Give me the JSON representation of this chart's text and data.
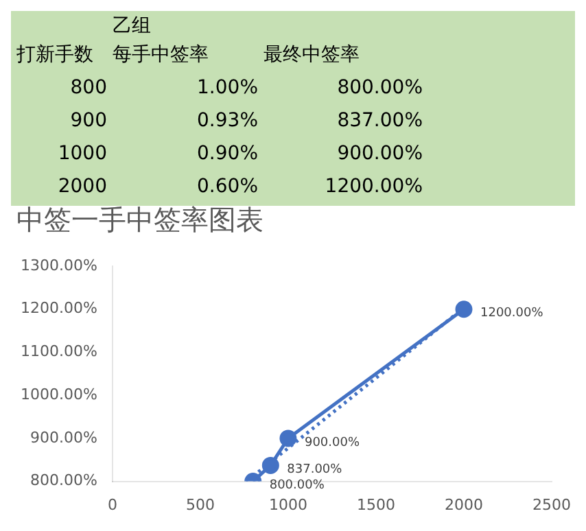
{
  "chart_data": [
    {
      "type": "other",
      "title": "乙组",
      "annotations": [
        "打新手数",
        "每手中签率",
        "最终中签率",
        "800",
        "1.00%",
        "800.00%",
        "900",
        "0.93%",
        "837.00%",
        "1000",
        "0.90%",
        "900.00%",
        "2000",
        "0.60%",
        "1200.00%"
      ]
    },
    {
      "type": "scatter",
      "title": "中签一手中签率图表",
      "x": [
        800,
        900,
        1000,
        2000
      ],
      "series": [
        {
          "type": "line",
          "color": "#4472c4",
          "marker": "circle",
          "line_style": "solid",
          "values": [
            800,
            837,
            900,
            1200
          ],
          "value_labels": [
            "800.00%",
            "837.00%",
            "900.00%",
            "1200.00%"
          ]
        },
        {
          "type": "line",
          "color": "#4472c4",
          "marker": "none",
          "line_style": "dotted",
          "x": [
            800,
            2000
          ],
          "values": [
            812,
            1203
          ]
        }
      ],
      "xlim": [
        0,
        2500
      ],
      "xticks": [
        0,
        500,
        1000,
        1500,
        2000,
        2500
      ],
      "ylim": [
        800,
        1300
      ],
      "yticks": [
        {
          "value": 800,
          "label": "800.00%"
        },
        {
          "value": 900,
          "label": "900.00%"
        },
        {
          "value": 1000,
          "label": "1000.00%"
        },
        {
          "value": 1100,
          "label": "1100.00%"
        },
        {
          "value": 1200,
          "label": "1200.00%"
        },
        {
          "value": 1300,
          "label": "1300.00%"
        }
      ],
      "grid": false,
      "legend": false
    }
  ]
}
